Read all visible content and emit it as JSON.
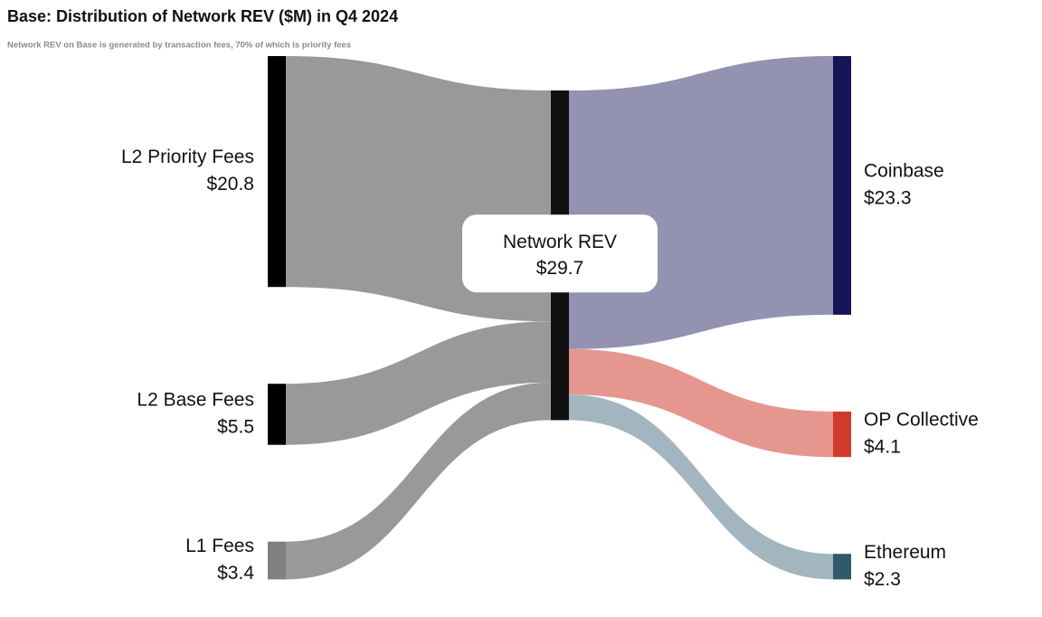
{
  "chart_data": {
    "type": "sankey",
    "title": "Base: Distribution of Network REV ($M) in Q4 2024",
    "subtitle": "Network REV on Base is generated by transaction fees, 70% of which is priority fees",
    "nodes": [
      {
        "name": "L2 Priority Fees",
        "value": 20.8,
        "value_label": "$20.8",
        "color": "#000000"
      },
      {
        "name": "L2 Base Fees",
        "value": 5.5,
        "value_label": "$5.5",
        "color": "#000000"
      },
      {
        "name": "L1 Fees",
        "value": 3.4,
        "value_label": "$3.4",
        "color": "#7f7f7f"
      },
      {
        "name": "Network REV",
        "value": 29.7,
        "value_label": "$29.7",
        "color": "#111111"
      },
      {
        "name": "Coinbase",
        "value": 23.3,
        "value_label": "$23.3",
        "color": "#14145a"
      },
      {
        "name": "OP Collective",
        "value": 4.1,
        "value_label": "$4.1",
        "color": "#d03a2a"
      },
      {
        "name": "Ethereum",
        "value": 2.3,
        "value_label": "$2.3",
        "color": "#2f5a6a"
      }
    ],
    "links": [
      {
        "source": 0,
        "target": 3,
        "color": "#999999"
      },
      {
        "source": 1,
        "target": 3,
        "color": "#999999"
      },
      {
        "source": 2,
        "target": 3,
        "color": "#999999"
      },
      {
        "source": 3,
        "target": 4,
        "color": "#9392b0"
      },
      {
        "source": 3,
        "target": 5,
        "color": "#e5968e"
      },
      {
        "source": 3,
        "target": 6,
        "color": "#a3b5bf"
      }
    ]
  }
}
